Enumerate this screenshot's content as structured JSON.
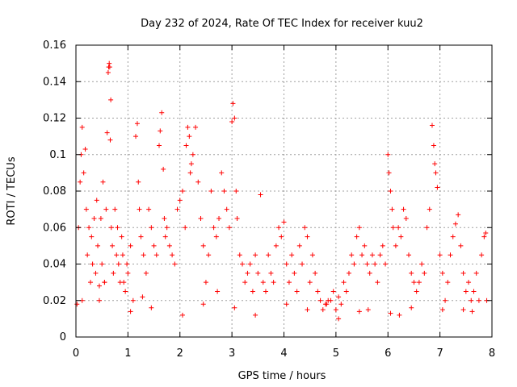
{
  "chart_data": {
    "type": "scatter",
    "title": "Day 232 of 2024, Rate Of TEC Index for receiver kuu2",
    "xlabel": "GPS time / hours",
    "ylabel": "ROTI / TECUs",
    "xlim": [
      0,
      8
    ],
    "ylim": [
      0,
      0.16
    ],
    "grid": true,
    "marker": "+",
    "x_ticks": [
      0,
      1,
      2,
      3,
      4,
      5,
      6,
      7,
      8
    ],
    "x_tick_labels": [
      "0",
      "1",
      "2",
      "3",
      "4",
      "5",
      "6",
      "7",
      "8"
    ],
    "y_ticks": [
      0,
      0.02,
      0.04,
      0.06,
      0.08,
      0.1,
      0.12,
      0.14,
      0.16
    ],
    "y_tick_labels": [
      "0",
      "0.02",
      "0.04",
      "0.06",
      "0.08",
      "0.1",
      "0.12",
      "0.14",
      "0.16"
    ],
    "series": [
      {
        "name": "kuu2",
        "color": "#ff0000",
        "x": [
          0.02,
          0.05,
          0.08,
          0.1,
          0.12,
          0.15,
          0.18,
          0.2,
          0.22,
          0.25,
          0.28,
          0.3,
          0.32,
          0.35,
          0.38,
          0.4,
          0.42,
          0.45,
          0.48,
          0.5,
          0.52,
          0.55,
          0.58,
          0.6,
          0.62,
          0.63,
          0.64,
          0.65,
          0.66,
          0.67,
          0.68,
          0.7,
          0.72,
          0.75,
          0.78,
          0.8,
          0.82,
          0.85,
          0.88,
          0.9,
          0.92,
          0.95,
          0.98,
          1.0,
          1.05,
          1.1,
          1.15,
          1.18,
          1.2,
          1.22,
          1.25,
          1.3,
          1.35,
          1.4,
          1.45,
          1.5,
          1.55,
          1.6,
          1.62,
          1.65,
          1.68,
          1.7,
          1.72,
          1.75,
          1.8,
          1.85,
          1.9,
          1.95,
          2.0,
          2.05,
          2.1,
          2.12,
          2.15,
          2.18,
          2.2,
          2.22,
          2.25,
          2.3,
          2.35,
          2.4,
          2.45,
          2.5,
          2.55,
          2.6,
          2.65,
          2.7,
          2.75,
          2.8,
          2.85,
          2.9,
          2.95,
          3.0,
          3.02,
          3.05,
          3.08,
          3.1,
          3.15,
          3.2,
          3.25,
          3.3,
          3.35,
          3.4,
          3.45,
          3.5,
          3.55,
          3.6,
          3.65,
          3.7,
          3.75,
          3.8,
          3.85,
          3.9,
          3.95,
          4.0,
          4.05,
          4.1,
          4.15,
          4.2,
          4.25,
          4.3,
          4.35,
          4.4,
          4.45,
          4.5,
          4.55,
          4.6,
          4.65,
          4.7,
          4.75,
          4.8,
          4.85,
          4.9,
          4.95,
          5.0,
          5.05,
          5.1,
          5.15,
          5.2,
          5.25,
          5.3,
          5.35,
          5.4,
          5.45,
          5.5,
          5.55,
          5.6,
          5.65,
          5.7,
          5.75,
          5.8,
          5.85,
          5.9,
          5.95,
          6.0,
          6.02,
          6.05,
          6.08,
          6.1,
          6.15,
          6.2,
          6.25,
          6.3,
          6.35,
          6.4,
          6.45,
          6.5,
          6.55,
          6.6,
          6.65,
          6.7,
          6.75,
          6.8,
          6.85,
          6.88,
          6.9,
          6.92,
          6.95,
          7.0,
          7.05,
          7.1,
          7.15,
          7.2,
          7.25,
          7.3,
          7.35,
          7.4,
          7.45,
          7.5,
          7.55,
          7.6,
          7.65,
          7.7,
          7.75,
          7.8,
          7.85,
          7.88,
          7.9,
          7.05,
          2.05,
          4.05,
          5.05,
          6.05,
          3.05,
          1.05,
          0.45,
          1.45,
          2.45,
          3.45,
          4.45,
          5.45,
          6.45,
          7.45,
          0.12,
          0.55,
          1.28,
          2.72,
          4.82,
          5.62,
          6.22,
          7.62
        ],
        "y": [
          0.018,
          0.06,
          0.085,
          0.1,
          0.115,
          0.09,
          0.103,
          0.07,
          0.045,
          0.06,
          0.03,
          0.055,
          0.04,
          0.065,
          0.035,
          0.075,
          0.05,
          0.028,
          0.065,
          0.04,
          0.085,
          0.03,
          0.07,
          0.112,
          0.145,
          0.148,
          0.15,
          0.148,
          0.108,
          0.13,
          0.06,
          0.05,
          0.035,
          0.07,
          0.045,
          0.06,
          0.04,
          0.03,
          0.055,
          0.045,
          0.03,
          0.025,
          0.04,
          0.035,
          0.05,
          0.02,
          0.11,
          0.117,
          0.085,
          0.07,
          0.055,
          0.045,
          0.035,
          0.07,
          0.06,
          0.05,
          0.045,
          0.105,
          0.113,
          0.123,
          0.092,
          0.065,
          0.055,
          0.06,
          0.05,
          0.045,
          0.04,
          0.07,
          0.075,
          0.08,
          0.06,
          0.105,
          0.115,
          0.11,
          0.09,
          0.095,
          0.1,
          0.115,
          0.085,
          0.065,
          0.05,
          0.03,
          0.045,
          0.08,
          0.06,
          0.055,
          0.065,
          0.09,
          0.08,
          0.07,
          0.06,
          0.118,
          0.128,
          0.12,
          0.08,
          0.065,
          0.045,
          0.04,
          0.03,
          0.035,
          0.04,
          0.025,
          0.045,
          0.035,
          0.078,
          0.03,
          0.025,
          0.045,
          0.035,
          0.03,
          0.05,
          0.06,
          0.055,
          0.063,
          0.04,
          0.03,
          0.045,
          0.035,
          0.025,
          0.05,
          0.04,
          0.06,
          0.055,
          0.03,
          0.045,
          0.035,
          0.025,
          0.02,
          0.015,
          0.018,
          0.02,
          0.02,
          0.025,
          0.015,
          0.022,
          0.018,
          0.03,
          0.025,
          0.035,
          0.045,
          0.04,
          0.055,
          0.06,
          0.045,
          0.05,
          0.04,
          0.035,
          0.045,
          0.04,
          0.03,
          0.045,
          0.05,
          0.04,
          0.1,
          0.09,
          0.08,
          0.07,
          0.06,
          0.05,
          0.06,
          0.055,
          0.07,
          0.065,
          0.045,
          0.035,
          0.03,
          0.025,
          0.03,
          0.04,
          0.035,
          0.06,
          0.07,
          0.116,
          0.105,
          0.095,
          0.09,
          0.082,
          0.045,
          0.035,
          0.02,
          0.03,
          0.045,
          0.055,
          0.062,
          0.067,
          0.05,
          0.035,
          0.025,
          0.03,
          0.02,
          0.025,
          0.035,
          0.02,
          0.045,
          0.055,
          0.057,
          0.02,
          0.015,
          0.012,
          0.018,
          0.01,
          0.013,
          0.016,
          0.014,
          0.02,
          0.016,
          0.018,
          0.012,
          0.015,
          0.014,
          0.016,
          0.015,
          0.02,
          0.03,
          0.022,
          0.025,
          0.018,
          0.015,
          0.012,
          0.014
        ]
      }
    ]
  }
}
